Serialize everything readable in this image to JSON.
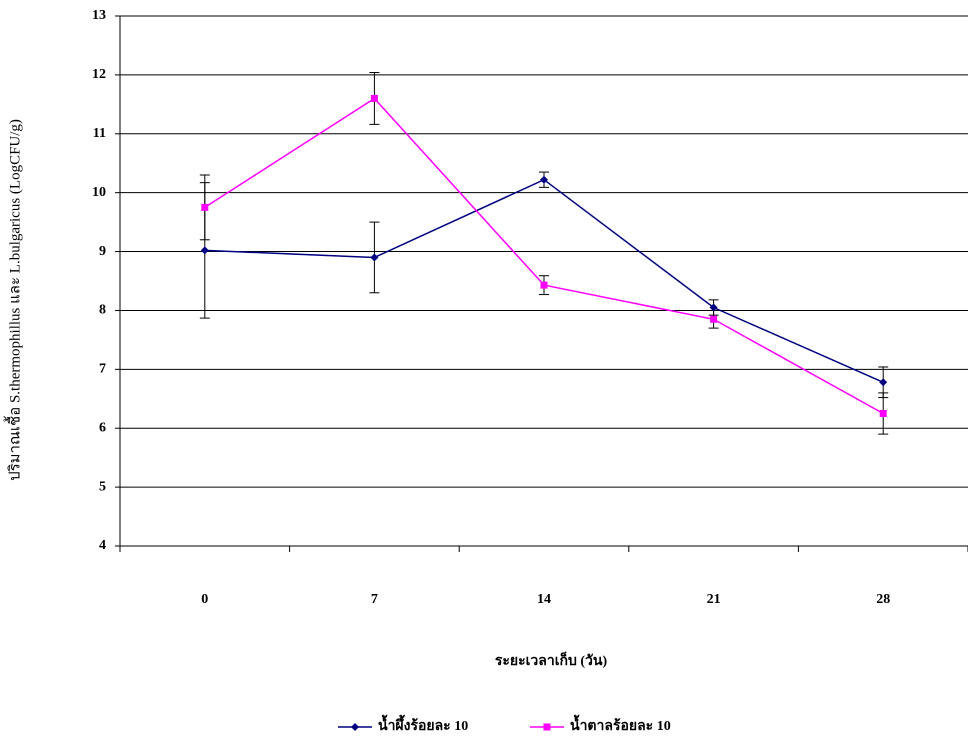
{
  "chart_data": {
    "type": "line",
    "y_label": "ปริมาณเชื้อ S.thermophillus และ L.bulgaricus (LogCFU/g)",
    "x_label": "ระยะเวลาเก็บ (วัน)",
    "categories": [
      "0",
      "7",
      "14",
      "21",
      "28"
    ],
    "series": [
      {
        "name": "น้ำผึ้งร้อยละ 10",
        "color": "#000080",
        "marker": "diamond",
        "values": [
          9.02,
          8.9,
          10.22,
          8.05,
          6.78
        ],
        "errors": [
          1.15,
          0.6,
          0.13,
          0.13,
          0.26
        ]
      },
      {
        "name": "น้ำตาลร้อยละ 10",
        "color": "#ff00ff",
        "marker": "square",
        "values": [
          9.75,
          11.6,
          8.43,
          7.85,
          6.25
        ],
        "errors": [
          0.55,
          0.44,
          0.16,
          0.15,
          0.35
        ]
      }
    ],
    "ylim": [
      4,
      13
    ],
    "yticks": [
      4,
      5,
      6,
      7,
      8,
      9,
      10,
      11,
      12,
      13
    ],
    "grid": true,
    "legend": "bottom"
  }
}
